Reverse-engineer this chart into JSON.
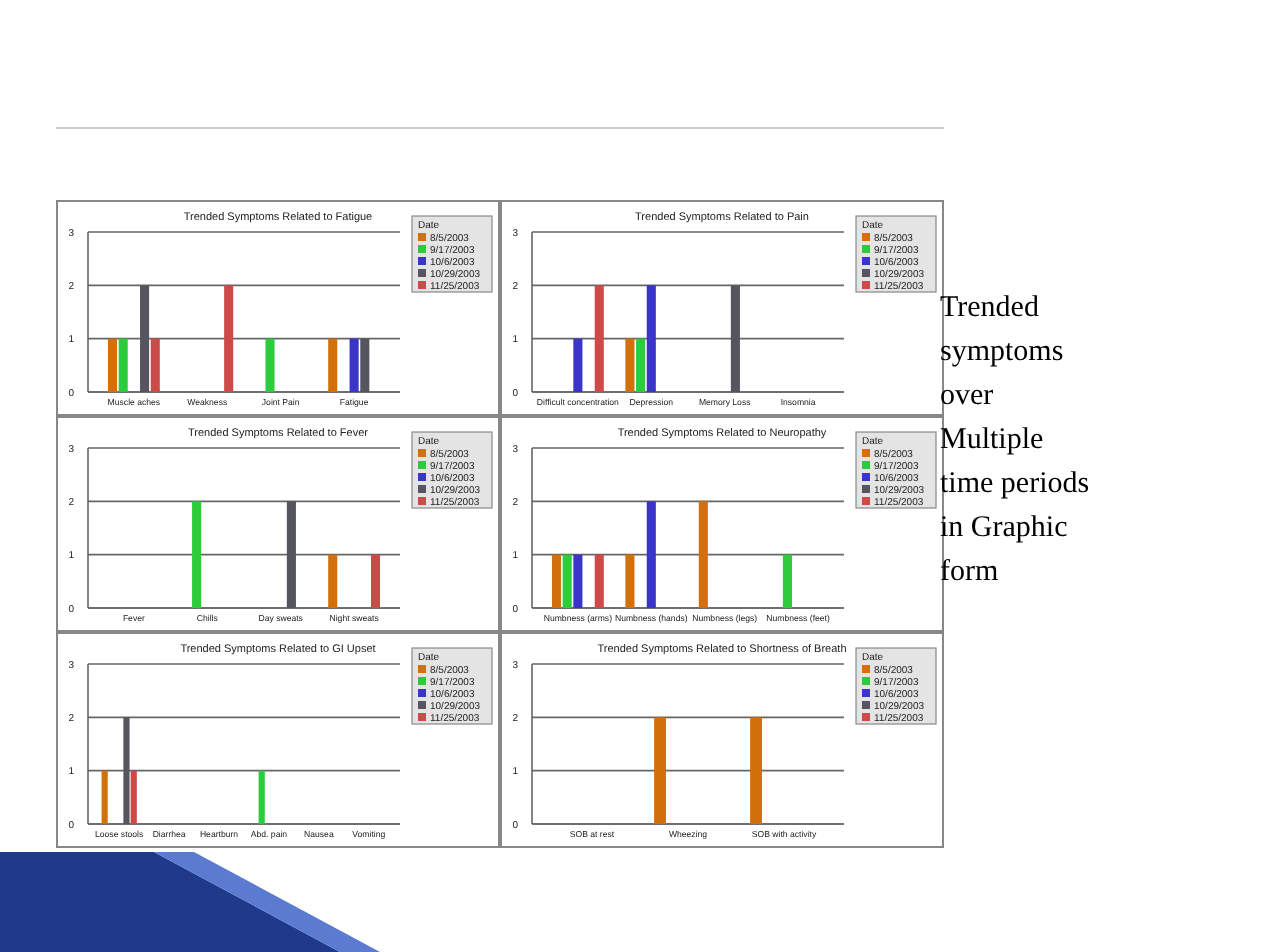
{
  "chart_data": [
    {
      "type": "bar",
      "title": "Trended Symptoms Related to Fatigue",
      "categories": [
        "Muscle aches",
        "Weakness",
        "Joint Pain",
        "Fatigue"
      ],
      "legend_title": "Date",
      "legend": "right",
      "grid": "y",
      "ylim": [
        0,
        3
      ],
      "yticks": [
        0,
        1,
        2,
        3
      ],
      "annotations": [
        "Trended symptoms over Multiple time periods in Graphic form"
      ],
      "series": [
        {
          "name": "8/5/2003",
          "color": "#d2700c",
          "values": [
            1,
            null,
            null,
            1
          ]
        },
        {
          "name": "9/17/2003",
          "color": "#2ccc3c",
          "values": [
            1,
            null,
            1,
            null
          ]
        },
        {
          "name": "10/6/2003",
          "color": "#3a34c8",
          "values": [
            null,
            null,
            null,
            1
          ]
        },
        {
          "name": "10/29/2003",
          "color": "#555560",
          "values": [
            2,
            null,
            null,
            1
          ]
        },
        {
          "name": "11/25/2003",
          "color": "#cc4a48",
          "values": [
            1,
            2,
            null,
            null
          ]
        }
      ]
    },
    {
      "type": "bar",
      "title": "Trended Symptoms Related to Pain",
      "categories": [
        "Difficult concentration",
        "Depression",
        "Memory Loss",
        "Insomnia"
      ],
      "legend_title": "Date",
      "legend": "right",
      "grid": "y",
      "ylim": [
        0,
        3
      ],
      "yticks": [
        0,
        1,
        2,
        3
      ],
      "series": [
        {
          "name": "8/5/2003",
          "color": "#d2700c",
          "values": [
            null,
            1,
            null,
            null
          ]
        },
        {
          "name": "9/17/2003",
          "color": "#2ccc3c",
          "values": [
            null,
            1,
            null,
            null
          ]
        },
        {
          "name": "10/6/2003",
          "color": "#3a34c8",
          "values": [
            1,
            2,
            null,
            null
          ]
        },
        {
          "name": "10/29/2003",
          "color": "#555560",
          "values": [
            null,
            null,
            2,
            null
          ]
        },
        {
          "name": "11/25/2003",
          "color": "#cc4a48",
          "values": [
            2,
            null,
            null,
            null
          ]
        }
      ]
    },
    {
      "type": "bar",
      "title": "Trended Symptoms Related to Fever",
      "categories": [
        "Fever",
        "Chills",
        "Day sweats",
        "Night sweats"
      ],
      "legend_title": "Date",
      "legend": "right",
      "grid": "y",
      "ylim": [
        0,
        3
      ],
      "yticks": [
        0,
        1,
        2,
        3
      ],
      "series": [
        {
          "name": "8/5/2003",
          "color": "#d2700c",
          "values": [
            null,
            null,
            null,
            1
          ]
        },
        {
          "name": "9/17/2003",
          "color": "#2ccc3c",
          "values": [
            null,
            2,
            null,
            null
          ]
        },
        {
          "name": "10/6/2003",
          "color": "#3a34c8",
          "values": [
            null,
            null,
            null,
            null
          ]
        },
        {
          "name": "10/29/2003",
          "color": "#555560",
          "values": [
            null,
            null,
            2,
            null
          ]
        },
        {
          "name": "11/25/2003",
          "color": "#cc4a48",
          "values": [
            null,
            null,
            null,
            1
          ]
        }
      ]
    },
    {
      "type": "bar",
      "title": "Trended Symptoms Related to Neuropathy",
      "categories": [
        "Numbness (arms)",
        "Numbness (hands)",
        "Numbness (legs)",
        "Numbness (feet)"
      ],
      "legend_title": "Date",
      "legend": "right",
      "grid": "y",
      "ylim": [
        0,
        3
      ],
      "yticks": [
        0,
        1,
        2,
        3
      ],
      "series": [
        {
          "name": "8/5/2003",
          "color": "#d2700c",
          "values": [
            1,
            1,
            2,
            null
          ]
        },
        {
          "name": "9/17/2003",
          "color": "#2ccc3c",
          "values": [
            1,
            null,
            null,
            1
          ]
        },
        {
          "name": "10/6/2003",
          "color": "#3a34c8",
          "values": [
            1,
            2,
            null,
            null
          ]
        },
        {
          "name": "10/29/2003",
          "color": "#555560",
          "values": [
            null,
            null,
            null,
            null
          ]
        },
        {
          "name": "11/25/2003",
          "color": "#cc4a48",
          "values": [
            1,
            null,
            null,
            null
          ]
        }
      ]
    },
    {
      "type": "bar",
      "title": "Trended Symptoms Related to GI Upset",
      "categories": [
        "Loose stools",
        "Diarrhea",
        "Heartburn",
        "Abd. pain",
        "Nausea",
        "Vomiting"
      ],
      "legend_title": "Date",
      "legend": "right",
      "grid": "y",
      "ylim": [
        0,
        3
      ],
      "yticks": [
        0,
        1,
        2,
        3
      ],
      "series": [
        {
          "name": "8/5/2003",
          "color": "#d2700c",
          "values": [
            1,
            null,
            null,
            null,
            null,
            null
          ]
        },
        {
          "name": "9/17/2003",
          "color": "#2ccc3c",
          "values": [
            null,
            null,
            null,
            1,
            null,
            null
          ]
        },
        {
          "name": "10/6/2003",
          "color": "#3a34c8",
          "values": [
            null,
            null,
            null,
            null,
            null,
            null
          ]
        },
        {
          "name": "10/29/2003",
          "color": "#555560",
          "values": [
            2,
            null,
            null,
            null,
            null,
            null
          ]
        },
        {
          "name": "11/25/2003",
          "color": "#cc4a48",
          "values": [
            1,
            null,
            null,
            null,
            null,
            null
          ]
        }
      ]
    },
    {
      "type": "bar",
      "title": "Trended Symptoms Related to Shortness of Breath",
      "categories": [
        "SOB at rest",
        "Wheezing",
        "SOB with activity"
      ],
      "legend_title": "Date",
      "legend": "right",
      "grid": "y",
      "ylim": [
        0,
        3
      ],
      "yticks": [
        0,
        1,
        2,
        3
      ],
      "series": [
        {
          "name": "8/5/2003",
          "color": "#d2700c",
          "values": [
            null,
            2,
            2
          ]
        },
        {
          "name": "9/17/2003",
          "color": "#2ccc3c",
          "values": [
            null,
            null,
            null
          ]
        },
        {
          "name": "10/6/2003",
          "color": "#3a34c8",
          "values": [
            null,
            null,
            null
          ]
        },
        {
          "name": "10/29/2003",
          "color": "#555560",
          "values": [
            null,
            null,
            null
          ]
        },
        {
          "name": "11/25/2003",
          "color": "#cc4a48",
          "values": [
            null,
            null,
            null
          ]
        }
      ]
    }
  ]
}
